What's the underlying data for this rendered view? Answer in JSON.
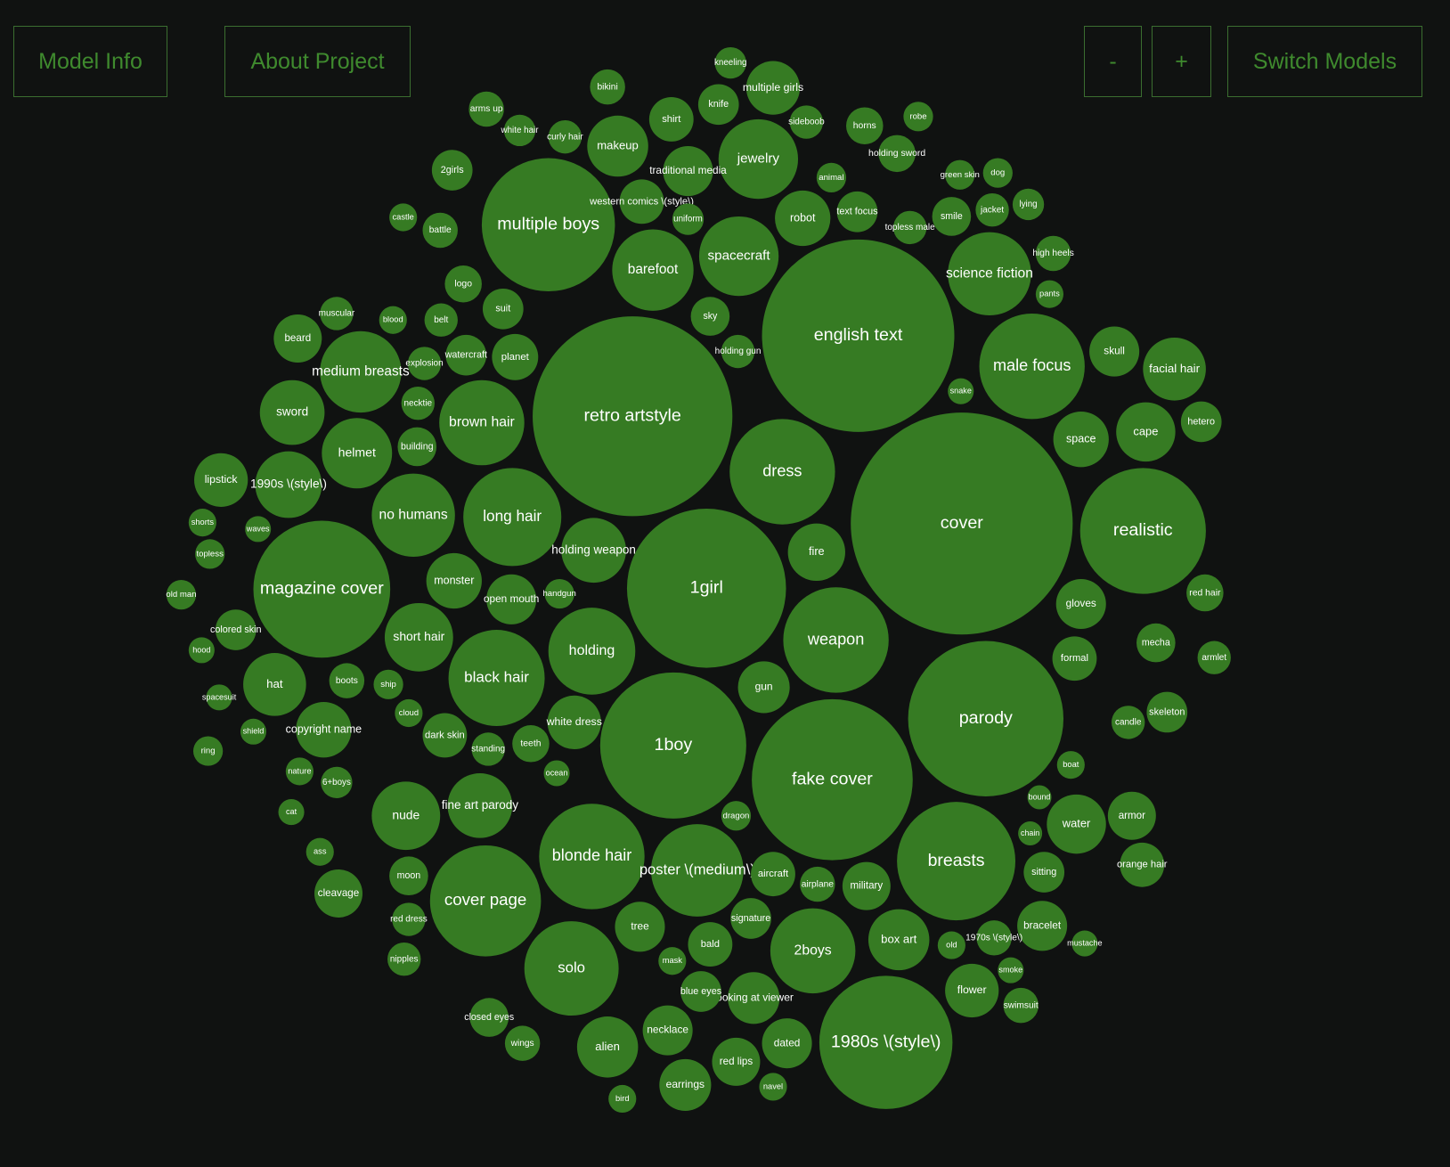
{
  "buttons": {
    "model_info": "Model Info",
    "about_project": "About Project",
    "zoom_out": "-",
    "zoom_in": "+",
    "switch_models": "Switch Models"
  },
  "chart_data": {
    "type": "packed-bubble",
    "color": "#367b23",
    "categories": [
      "cover",
      "english text",
      "retro artstyle",
      "1girl",
      "1boy",
      "fake cover",
      "parody",
      "magazine cover",
      "multiple boys",
      "1980s \\(style\\)",
      "realistic",
      "breasts",
      "cover page",
      "blonde hair",
      "dress",
      "weapon",
      "male focus",
      "poster \\(medium\\)",
      "solo",
      "2boys",
      "long hair",
      "black hair",
      "science fiction",
      "barefoot",
      "jewelry",
      "brown hair",
      "medium breasts",
      "no humans",
      "holding",
      "short hair",
      "spacecraft",
      "holding weapon",
      "fine art parody",
      "nude",
      "1990s \\(style\\)",
      "helmet",
      "sword",
      "hat",
      "copyright name",
      "multiple girls",
      "makeup",
      "traditional media",
      "western comics \\(style\\)",
      "robot",
      "facial hair",
      "cape",
      "space",
      "hetero",
      "skull",
      "gloves",
      "formal",
      "mecha",
      "skeleton",
      "water",
      "armor",
      "orange hair",
      "bracelet",
      "sitting",
      "flower",
      "box art",
      "military",
      "airplane",
      "aircraft",
      "dated",
      "alien",
      "earrings",
      "necklace",
      "red lips",
      "looking at viewer",
      "tree",
      "bald",
      "signature",
      "gun",
      "fire",
      "lipstick",
      "beard",
      "cleavage",
      "monster",
      "open mouth",
      "dark skin",
      "teeth",
      "white dress",
      "planet",
      "watercraft",
      "knife",
      "shirt",
      "bikini",
      "kneeling",
      "sideboob",
      "horns",
      "robe",
      "2girls",
      "arms up",
      "suit",
      "logo",
      "battle",
      "sky",
      "holding gun",
      "text focus",
      "smile",
      "jacket",
      "dog",
      "lying",
      "high heels",
      "pants",
      "nipples",
      "closed eyes",
      "wings",
      "moon",
      "boots",
      "ship",
      "6+boys",
      "holding sword",
      "animal",
      "topless male",
      "muscular",
      "blood",
      "belt",
      "building",
      "necktie",
      "explosion",
      "colored skin",
      "red hair",
      "armlet",
      "old man",
      "shorts",
      "topless",
      "cloud",
      "standing",
      "ocean",
      "dragon",
      "mask",
      "blue eyes",
      "candle",
      "boat",
      "swimsuit",
      "smoke",
      "old",
      "1970s \\(style\\)",
      "snake",
      "green skin",
      "uniform",
      "bird",
      "navel",
      "mustache",
      "chain",
      "bound",
      "handgun",
      "red dress",
      "cat",
      "nature",
      "ass",
      "hood",
      "shield",
      "ring",
      "spacesuit",
      "waves",
      "castle",
      "curly hair",
      "white hair"
    ],
    "values": [
      120,
      104,
      108,
      86,
      79,
      87,
      84,
      74,
      72,
      72,
      68,
      64,
      60,
      57,
      57,
      57,
      57,
      50,
      51,
      46,
      53,
      52,
      45,
      44,
      43,
      46,
      44,
      45,
      47,
      37,
      43,
      35,
      35,
      37,
      36,
      38,
      35,
      34,
      30,
      29,
      33,
      27,
      24,
      30,
      34,
      32,
      30,
      22,
      27,
      27,
      24,
      21,
      22,
      32,
      26,
      24,
      27,
      22,
      29,
      33,
      26,
      19,
      24,
      27,
      33,
      28,
      27,
      26,
      28,
      27,
      24,
      22,
      28,
      31,
      29,
      26,
      26,
      30,
      27,
      24,
      20,
      29,
      25,
      22,
      22,
      24,
      19,
      17,
      18,
      20,
      16,
      22,
      19,
      22,
      20,
      19,
      21,
      18,
      22,
      21,
      18,
      16,
      17,
      19,
      15,
      18,
      21,
      19,
      21,
      19,
      16,
      17,
      20,
      16,
      18,
      18,
      15,
      18,
      21,
      18,
      18,
      22,
      20,
      18,
      16,
      15,
      16,
      15,
      18,
      14,
      16,
      15,
      22,
      18,
      15,
      19,
      14,
      15,
      19,
      14,
      16,
      17,
      15,
      15,
      14,
      13,
      13,
      16,
      18,
      14,
      15,
      15,
      14,
      14,
      16,
      14,
      14,
      15,
      18,
      17
    ]
  }
}
